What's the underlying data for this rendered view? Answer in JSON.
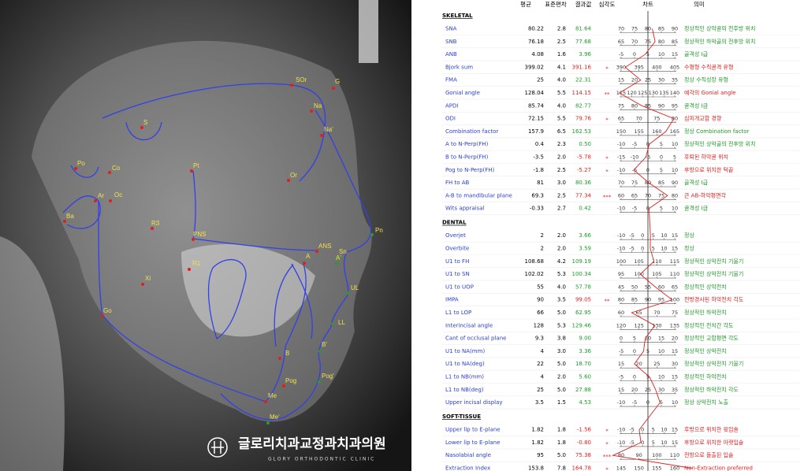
{
  "logo": {
    "name": "글로리치과교정과치과의원",
    "subtitle": "GLORY ORTHODONTIC CLINIC"
  },
  "landmarks": [
    "SOr",
    "G",
    "Na",
    "S",
    "Na'",
    "Po",
    "Co",
    "Or",
    "Pt",
    "Ar",
    "Oc",
    "Ba",
    "R3",
    "PNS",
    "ANS",
    "Sn",
    "Pn",
    "A'",
    "A",
    "R1",
    "Xi",
    "UL",
    "Go",
    "LL",
    "B'",
    "B",
    "Pog'",
    "Pog",
    "Me",
    "Me'"
  ],
  "table": {
    "headers": {
      "mean": "평균",
      "sd": "표준편차",
      "result": "결과값",
      "severity": "심각도",
      "chart": "차트",
      "meaning": "의미"
    },
    "sections": [
      {
        "title": "SKELETAL",
        "rows": [
          {
            "name": "SNA",
            "mean": "80.22",
            "sd": "2.8",
            "result": "81.64",
            "scale": [
              70,
              75,
              80,
              85,
              90
            ],
            "meaning": "정상적인 상악골의 전후방 위치",
            "abnormal": false
          },
          {
            "name": "SNB",
            "mean": "76.18",
            "sd": "2.5",
            "result": "77.68",
            "scale": [
              65,
              70,
              75,
              80,
              85
            ],
            "meaning": "정상적인 하악골의 전후방 위치",
            "abnormal": false
          },
          {
            "name": "ANB",
            "mean": "4.08",
            "sd": "1.6",
            "result": "3.96",
            "scale": [
              -5,
              0,
              5,
              10,
              15
            ],
            "meaning": "골격성 I급",
            "abnormal": false
          },
          {
            "name": "Bjork sum",
            "mean": "399.02",
            "sd": "4.1",
            "result": "391.16",
            "severity": "*",
            "scale": [
              390,
              395,
              400,
              405
            ],
            "meaning": "수평형 수직골격 유형",
            "abnormal": true
          },
          {
            "name": "FMA",
            "mean": "25",
            "sd": "4.0",
            "result": "22.31",
            "scale": [
              15,
              20,
              25,
              30,
              35
            ],
            "meaning": "정상 수직성장 유형",
            "abnormal": false
          },
          {
            "name": "Gonial angle",
            "mean": "128.04",
            "sd": "5.5",
            "result": "114.15",
            "severity": "**",
            "scale": [
              115,
              120,
              125,
              130,
              135,
              140
            ],
            "meaning": "예각의 Gonial angle",
            "abnormal": true
          },
          {
            "name": "APDI",
            "mean": "85.74",
            "sd": "4.0",
            "result": "82.77",
            "scale": [
              75,
              80,
              85,
              90,
              95
            ],
            "meaning": "골격성 I급",
            "abnormal": false
          },
          {
            "name": "ODI",
            "mean": "72.15",
            "sd": "5.5",
            "result": "79.76",
            "severity": "*",
            "scale": [
              65,
              70,
              75,
              80
            ],
            "meaning": "심피개교합 경향",
            "abnormal": true
          },
          {
            "name": "Combination factor",
            "mean": "157.9",
            "sd": "6.5",
            "result": "162.53",
            "scale": [
              150,
              155,
              160,
              165
            ],
            "meaning": "정상 Combination factor",
            "abnormal": false
          },
          {
            "name": "A to N-Perp(FH)",
            "mean": "0.4",
            "sd": "2.3",
            "result": "0.50",
            "scale": [
              -10,
              -5,
              0,
              5,
              10
            ],
            "meaning": "정상적인 상악골의 전후방 위치",
            "abnormal": false
          },
          {
            "name": "B to N-Perp(FH)",
            "mean": "-3.5",
            "sd": "2.0",
            "result": "-5.78",
            "severity": "*",
            "scale": [
              -15,
              -10,
              -5,
              0,
              5
            ],
            "meaning": "후퇴된 하악골 위치",
            "abnormal": true
          },
          {
            "name": "Pog to N-Perp(FH)",
            "mean": "-1.8",
            "sd": "2.5",
            "result": "-5.27",
            "severity": "*",
            "scale": [
              -10,
              -5,
              0,
              5,
              10
            ],
            "meaning": "후방으로 위치한 턱끝",
            "abnormal": true
          },
          {
            "name": "FH to AB",
            "mean": "81",
            "sd": "3.0",
            "result": "80.36",
            "scale": [
              70,
              75,
              80,
              85,
              90
            ],
            "meaning": "골격성 I급",
            "abnormal": false
          },
          {
            "name": "A-B to mandibular plane",
            "mean": "69.3",
            "sd": "2.5",
            "result": "77.34",
            "severity": "***",
            "scale": [
              60,
              65,
              70,
              75,
              80
            ],
            "meaning": "큰 AB-하악평면각",
            "abnormal": true
          },
          {
            "name": "Wits appraisal",
            "mean": "-0.33",
            "sd": "2.7",
            "result": "0.42",
            "scale": [
              -10,
              -5,
              0,
              5,
              10
            ],
            "meaning": "골격성 I급",
            "abnormal": false
          }
        ]
      },
      {
        "title": "DENTAL",
        "rows": [
          {
            "name": "Overjet",
            "mean": "2",
            "sd": "2.0",
            "result": "3.66",
            "scale": [
              -10,
              -5,
              0,
              5,
              10,
              15
            ],
            "meaning": "정상",
            "abnormal": false
          },
          {
            "name": "Overbite",
            "mean": "2",
            "sd": "2.0",
            "result": "3.59",
            "scale": [
              -10,
              -5,
              0,
              5,
              10,
              15
            ],
            "meaning": "정상",
            "abnormal": false
          },
          {
            "name": "U1 to FH",
            "mean": "108.68",
            "sd": "4.2",
            "result": "109.19",
            "scale": [
              100,
              105,
              110,
              115
            ],
            "meaning": "정상적인 상악전치 기울기",
            "abnormal": false
          },
          {
            "name": "U1 to SN",
            "mean": "102.02",
            "sd": "5.3",
            "result": "100.34",
            "scale": [
              95,
              100,
              105,
              110
            ],
            "meaning": "정상적인 상악전치 기울기",
            "abnormal": false
          },
          {
            "name": "U1 to UOP",
            "mean": "55",
            "sd": "4.0",
            "result": "57.78",
            "scale": [
              45,
              50,
              55,
              60,
              65
            ],
            "meaning": "정상적인 상악전치",
            "abnormal": false
          },
          {
            "name": "IMPA",
            "mean": "90",
            "sd": "3.5",
            "result": "99.05",
            "severity": "**",
            "scale": [
              80,
              85,
              90,
              95,
              100
            ],
            "meaning": "전방경사된 하악전치 각도",
            "abnormal": true
          },
          {
            "name": "L1 to LOP",
            "mean": "66",
            "sd": "5.0",
            "result": "62.95",
            "scale": [
              60,
              65,
              70,
              75
            ],
            "meaning": "정상적인 하악전치",
            "abnormal": false
          },
          {
            "name": "Interincisal angle",
            "mean": "128",
            "sd": "5.3",
            "result": "129.46",
            "scale": [
              120,
              125,
              130,
              135
            ],
            "meaning": "정상적인 전치간 각도",
            "abnormal": false
          },
          {
            "name": "Cant of occlusal plane",
            "mean": "9.3",
            "sd": "3.8",
            "result": "9.00",
            "scale": [
              0,
              5,
              10,
              15,
              20
            ],
            "meaning": "정상적인 교합평면 각도",
            "abnormal": false
          },
          {
            "name": "U1 to NA(mm)",
            "mean": "4",
            "sd": "3.0",
            "result": "3.36",
            "scale": [
              -5,
              0,
              5,
              10,
              15
            ],
            "meaning": "정상적인 상악전치",
            "abnormal": false
          },
          {
            "name": "U1 to NA(deg)",
            "mean": "22",
            "sd": "5.0",
            "result": "18.70",
            "scale": [
              15,
              20,
              25,
              30
            ],
            "meaning": "정상적인 상악전치 기울기",
            "abnormal": false
          },
          {
            "name": "L1 to NB(mm)",
            "mean": "4",
            "sd": "2.0",
            "result": "5.60",
            "scale": [
              -5,
              0,
              5,
              10,
              15
            ],
            "meaning": "정상적인 하악전치",
            "abnormal": false
          },
          {
            "name": "L1 to NB(deg)",
            "mean": "25",
            "sd": "5.0",
            "result": "27.88",
            "scale": [
              15,
              20,
              25,
              30,
              35
            ],
            "meaning": "정상적인 하악전치 각도",
            "abnormal": false
          },
          {
            "name": "Upper incisal display",
            "mean": "3.5",
            "sd": "1.5",
            "result": "4.53",
            "scale": [
              -10,
              -5,
              0,
              5,
              10
            ],
            "meaning": "정상 상악전치 노출",
            "abnormal": false
          }
        ]
      },
      {
        "title": "SOFT-TISSUE",
        "rows": [
          {
            "name": "Upper lip to E-plane",
            "mean": "1.82",
            "sd": "1.8",
            "result": "-1.56",
            "severity": "*",
            "scale": [
              -10,
              -5,
              0,
              5,
              10,
              15
            ],
            "meaning": "후방으로 위치한 윗입술",
            "abnormal": true
          },
          {
            "name": "Lower lip to E-plane",
            "mean": "1.82",
            "sd": "1.8",
            "result": "-0.80",
            "severity": "*",
            "scale": [
              -10,
              -5,
              0,
              5,
              10,
              15
            ],
            "meaning": "후방으로 위치한 아랫입술",
            "abnormal": true
          },
          {
            "name": "Nasolabial angle",
            "mean": "95",
            "sd": "5.0",
            "result": "75.38",
            "severity": "***",
            "scale": [
              80,
              90,
              100,
              110
            ],
            "meaning": "전방으로 돌출된 입술",
            "abnormal": true
          },
          {
            "name": "Extraction Index",
            "mean": "153.8",
            "sd": "7.8",
            "result": "164.78",
            "severity": "*",
            "scale": [
              145,
              150,
              155,
              160
            ],
            "meaning": "Non-Extraction preferred",
            "abnormal": true
          }
        ]
      }
    ]
  }
}
